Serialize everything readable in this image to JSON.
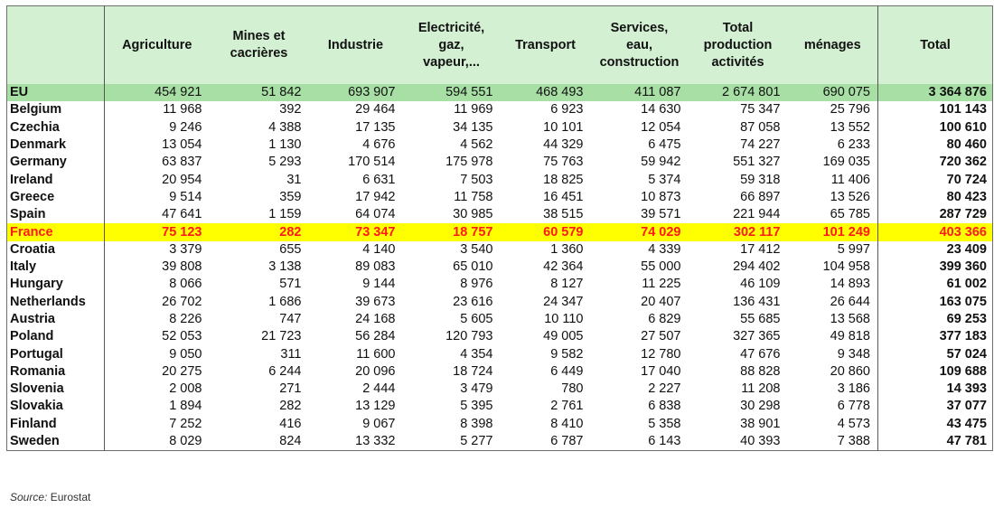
{
  "table": {
    "columns": [
      "",
      "Agriculture",
      "Mines et cacrières",
      "Industrie",
      "Electricité, gaz, vapeur,...",
      "Transport",
      "Services, eau, construction",
      "Total production activités",
      "ménages",
      "Total"
    ],
    "header_lines": [
      [
        ""
      ],
      [
        "Agriculture"
      ],
      [
        "Mines et",
        "cacrières"
      ],
      [
        "Industrie"
      ],
      [
        "Electricité,",
        "gaz,",
        "vapeur,..."
      ],
      [
        "Transport"
      ],
      [
        "Services,",
        "eau,",
        "construction"
      ],
      [
        "Total",
        "production",
        "activités"
      ],
      [
        "ménages"
      ],
      [
        "Total"
      ]
    ],
    "rows": [
      {
        "country": "EU",
        "values": [
          "454 921",
          "51 842",
          "693 907",
          "594 551",
          "468 493",
          "411 087",
          "2 674 801",
          "690 075"
        ],
        "total": "3 364 876",
        "style": "eu"
      },
      {
        "country": "Belgium",
        "values": [
          "11 968",
          "392",
          "29 464",
          "11 969",
          "6 923",
          "14 630",
          "75 347",
          "25 796"
        ],
        "total": "101 143"
      },
      {
        "country": "Czechia",
        "values": [
          "9 246",
          "4 388",
          "17 135",
          "34 135",
          "10 101",
          "12 054",
          "87 058",
          "13 552"
        ],
        "total": "100 610"
      },
      {
        "country": "Denmark",
        "values": [
          "13 054",
          "1 130",
          "4 676",
          "4 562",
          "44 329",
          "6 475",
          "74 227",
          "6 233"
        ],
        "total": "80 460"
      },
      {
        "country": "Germany",
        "values": [
          "63 837",
          "5 293",
          "170 514",
          "175 978",
          "75 763",
          "59 942",
          "551 327",
          "169 035"
        ],
        "total": "720 362"
      },
      {
        "country": "Ireland",
        "values": [
          "20 954",
          "31",
          "6 631",
          "7 503",
          "18 825",
          "5 374",
          "59 318",
          "11 406"
        ],
        "total": "70 724"
      },
      {
        "country": "Greece",
        "values": [
          "9 514",
          "359",
          "17 942",
          "11 758",
          "16 451",
          "10 873",
          "66 897",
          "13 526"
        ],
        "total": "80 423"
      },
      {
        "country": "Spain",
        "values": [
          "47 641",
          "1 159",
          "64 074",
          "30 985",
          "38 515",
          "39 571",
          "221 944",
          "65 785"
        ],
        "total": "287 729"
      },
      {
        "country": "France",
        "values": [
          "75 123",
          "282",
          "73 347",
          "18 757",
          "60 579",
          "74 029",
          "302 117",
          "101 249"
        ],
        "total": "403 366",
        "style": "highlight"
      },
      {
        "country": "Croatia",
        "values": [
          "3 379",
          "655",
          "4 140",
          "3 540",
          "1 360",
          "4 339",
          "17 412",
          "5 997"
        ],
        "total": "23 409"
      },
      {
        "country": "Italy",
        "values": [
          "39 808",
          "3 138",
          "89 083",
          "65 010",
          "42 364",
          "55 000",
          "294 402",
          "104 958"
        ],
        "total": "399 360"
      },
      {
        "country": "Hungary",
        "values": [
          "8 066",
          "571",
          "9 144",
          "8 976",
          "8 127",
          "11 225",
          "46 109",
          "14 893"
        ],
        "total": "61 002"
      },
      {
        "country": "Netherlands",
        "values": [
          "26 702",
          "1 686",
          "39 673",
          "23 616",
          "24 347",
          "20 407",
          "136 431",
          "26 644"
        ],
        "total": "163 075"
      },
      {
        "country": "Austria",
        "values": [
          "8 226",
          "747",
          "24 168",
          "5 605",
          "10 110",
          "6 829",
          "55 685",
          "13 568"
        ],
        "total": "69 253"
      },
      {
        "country": "Poland",
        "values": [
          "52 053",
          "21 723",
          "56 284",
          "120 793",
          "49 005",
          "27 507",
          "327 365",
          "49 818"
        ],
        "total": "377 183"
      },
      {
        "country": "Portugal",
        "values": [
          "9 050",
          "311",
          "11 600",
          "4 354",
          "9 582",
          "12 780",
          "47 676",
          "9 348"
        ],
        "total": "57 024"
      },
      {
        "country": "Romania",
        "values": [
          "20 275",
          "6 244",
          "20 096",
          "18 724",
          "6 449",
          "17 040",
          "88 828",
          "20 860"
        ],
        "total": "109 688"
      },
      {
        "country": "Slovenia",
        "values": [
          "2 008",
          "271",
          "2 444",
          "3 479",
          "780",
          "2 227",
          "11 208",
          "3 186"
        ],
        "total": "14 393"
      },
      {
        "country": "Slovakia",
        "values": [
          "1 894",
          "282",
          "13 129",
          "5 395",
          "2 761",
          "6 838",
          "30 298",
          "6 778"
        ],
        "total": "37 077"
      },
      {
        "country": "Finland",
        "values": [
          "7 252",
          "416",
          "9 067",
          "8 398",
          "8 410",
          "5 358",
          "38 901",
          "4 573"
        ],
        "total": "43 475"
      },
      {
        "country": "Sweden",
        "values": [
          "8 029",
          "824",
          "13 332",
          "5 277",
          "6 787",
          "6 143",
          "40 393",
          "7 388"
        ],
        "total": "47 781"
      }
    ]
  },
  "source": {
    "label": "Source:",
    "text": "Eurostat"
  },
  "colors": {
    "header_bg": "#d3f0d3",
    "eu_row_bg": "#a7dfa4",
    "highlight_bg": "#ffff00",
    "highlight_text": "#ff1a1a"
  }
}
